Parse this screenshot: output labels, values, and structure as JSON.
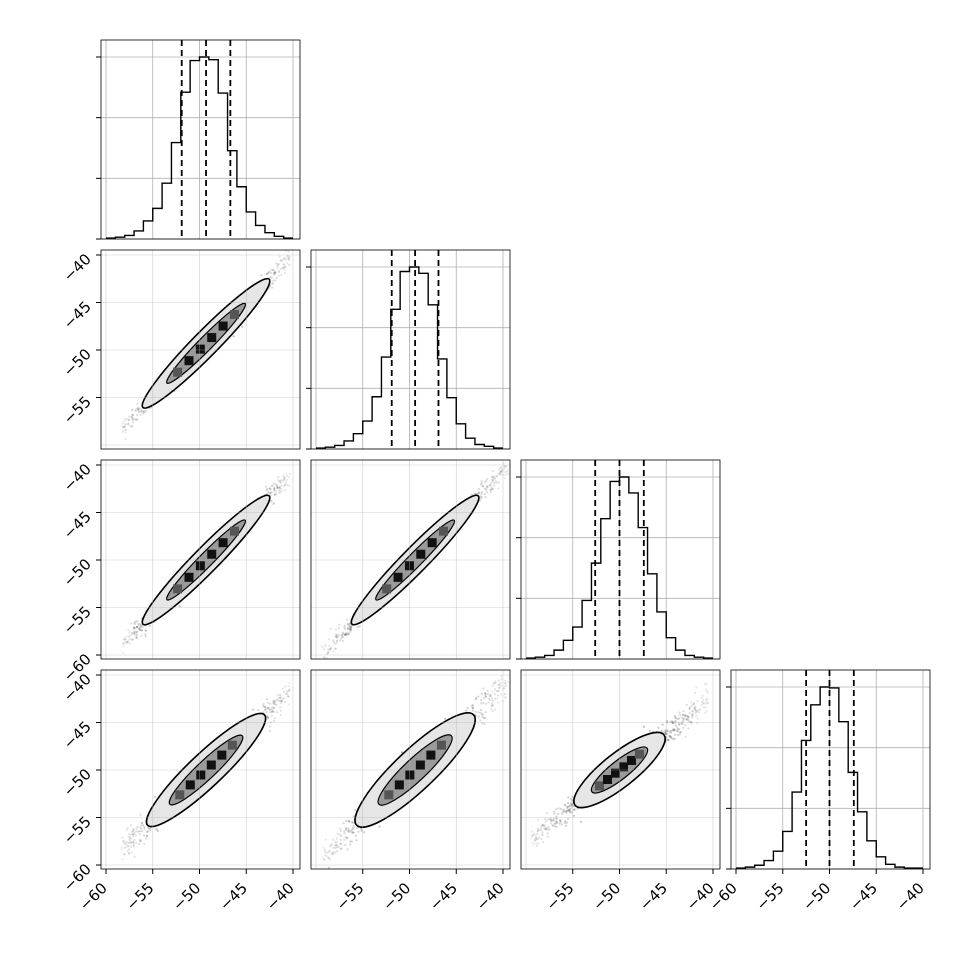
{
  "chart_data": {
    "type": "corner",
    "title": "",
    "variables": 4,
    "grid": true,
    "axis_range": [
      -60,
      -40
    ],
    "ticks": [
      -60,
      -55,
      -50,
      -45,
      -40
    ],
    "tick_labels": [
      "−60",
      "−55",
      "−50",
      "−45",
      "−40"
    ],
    "histograms": [
      {
        "bin_edges": [
          -60,
          -59,
          -58,
          -57,
          -56,
          -55,
          -54,
          -53,
          -52,
          -51,
          -50,
          -49,
          -48,
          -47,
          -46,
          -45,
          -44,
          -43,
          -42,
          -41,
          -40
        ],
        "counts": [
          1,
          2,
          4,
          9,
          20,
          34,
          62,
          107,
          163,
          198,
          202,
          199,
          162,
          98,
          58,
          30,
          15,
          7,
          3,
          1
        ],
        "quantiles": [
          -51.9,
          -49.3,
          -46.7
        ]
      },
      {
        "bin_edges": [
          -60,
          -59,
          -58,
          -57,
          -56,
          -55,
          -54,
          -53,
          -52,
          -51,
          -50,
          -49,
          -48,
          -47,
          -46,
          -45,
          -44,
          -43,
          -42,
          -41,
          -40
        ],
        "counts": [
          1,
          2,
          4,
          9,
          17,
          31,
          58,
          102,
          155,
          197,
          202,
          195,
          160,
          100,
          57,
          28,
          12,
          5,
          3,
          1
        ],
        "quantiles": [
          -51.9,
          -49.4,
          -46.9
        ]
      },
      {
        "bin_edges": [
          -60,
          -59,
          -58,
          -57,
          -56,
          -55,
          -54,
          -53,
          -52,
          -51,
          -50,
          -49,
          -48,
          -47,
          -46,
          -45,
          -44,
          -43,
          -42,
          -41,
          -40
        ],
        "counts": [
          1,
          2,
          4,
          10,
          21,
          36,
          66,
          108,
          158,
          200,
          205,
          187,
          148,
          96,
          53,
          24,
          10,
          4,
          2,
          1
        ],
        "quantiles": [
          -52.6,
          -50.0,
          -47.4
        ]
      },
      {
        "bin_edges": [
          -60,
          -59,
          -58,
          -57,
          -56,
          -55,
          -54,
          -53,
          -52,
          -51,
          -50,
          -49,
          -48,
          -47,
          -46,
          -45,
          -44,
          -43,
          -42,
          -41,
          -40
        ],
        "counts": [
          1,
          2,
          4,
          9,
          19,
          40,
          82,
          137,
          175,
          194,
          193,
          157,
          103,
          61,
          30,
          13,
          5,
          2,
          1,
          1
        ],
        "quantiles": [
          -52.5,
          -50.0,
          -47.4
        ]
      }
    ],
    "pairs": [
      {
        "row": 1,
        "col": 0,
        "center": [
          -49.3,
          -49.3
        ],
        "slope": 1.0,
        "len_dx": 13.5,
        "wid": 1.5,
        "x_range": [
          -59,
          -41
        ]
      },
      {
        "row": 2,
        "col": 0,
        "center": [
          -49.3,
          -50.0
        ],
        "slope": 1.0,
        "len_dx": 13.5,
        "wid": 1.5,
        "x_range": [
          -59,
          -41
        ]
      },
      {
        "row": 2,
        "col": 1,
        "center": [
          -49.4,
          -50.0
        ],
        "slope": 1.0,
        "len_dx": 13.5,
        "wid": 1.5,
        "x_range": [
          -60,
          -40
        ]
      },
      {
        "row": 3,
        "col": 0,
        "center": [
          -49.3,
          -50.0
        ],
        "slope": 0.93,
        "len_dx": 12.5,
        "wid": 2.0,
        "x_range": [
          -59,
          -41
        ]
      },
      {
        "row": 3,
        "col": 1,
        "center": [
          -49.4,
          -50.0
        ],
        "slope": 0.93,
        "len_dx": 12.5,
        "wid": 2.4,
        "x_range": [
          -60,
          -40
        ]
      },
      {
        "row": 3,
        "col": 2,
        "center": [
          -50.0,
          -50.0
        ],
        "slope": 0.78,
        "len_dx": 9.5,
        "wid": 2.0,
        "x_range": [
          -60,
          -41
        ]
      }
    ]
  }
}
